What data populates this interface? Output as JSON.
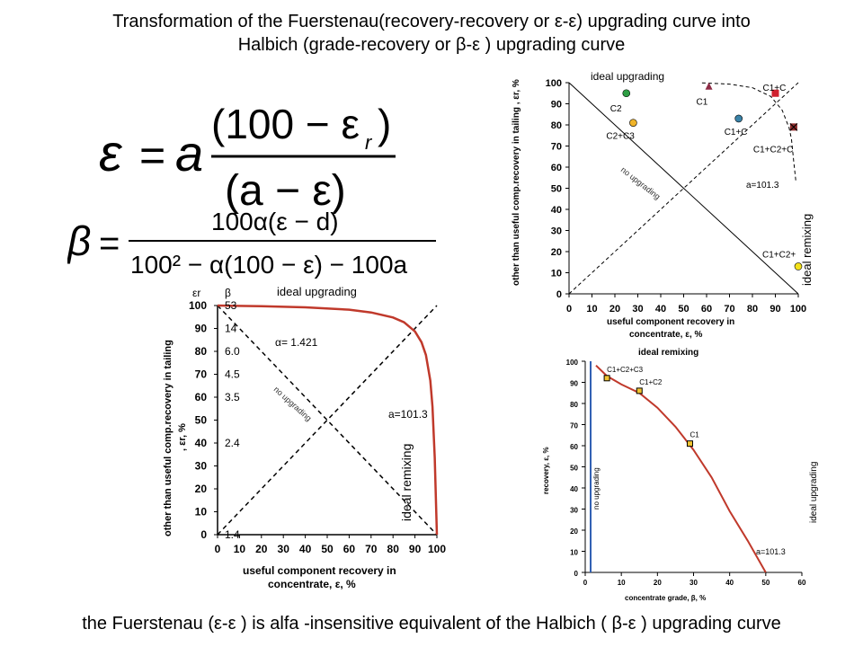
{
  "title": {
    "line1": "Transformation of the Fuerstenau(recovery-recovery or  ε-ε) upgrading curve into",
    "line2": "Halbich (grade-recovery or β-ε ) upgrading curve"
  },
  "footer": "the Fuerstenau (ε-ε ) is alfa -insensitive equivalent of  the Halbich ( β-ε ) upgrading curve",
  "formulas": {
    "eq1": {
      "lhs": "ε",
      "coef": "a",
      "numerator": "(100 − ε",
      "numerator_sub": "r",
      "numerator_close": ")",
      "denominator": "(a − ε)"
    },
    "eq2": {
      "lhs": "β",
      "numerator": "100α(ε − d)",
      "denominator": "100² − α(100 − ε) − 100a"
    }
  },
  "colors": {
    "curve": "#c0392b",
    "axis": "#000000",
    "dash": "#000000",
    "blue_line": "#2f5fb3"
  },
  "chart_data": [
    {
      "id": "fuerstenau-top-right",
      "type": "scatter",
      "xlabel": "useful  component  recovery  in concentrate,  ε, %",
      "ylabel": "other than  useful  comp.recovery  in tailing ,  εr, %",
      "xlim": [
        0,
        100
      ],
      "ylim": [
        0,
        100
      ],
      "xticks": [
        "0",
        "10",
        "20",
        "30",
        "40",
        "50",
        "60",
        "70",
        "80",
        "90",
        "100"
      ],
      "yticks": [
        "0",
        "10",
        "20",
        "30",
        "40",
        "50",
        "60",
        "70",
        "80",
        "90",
        "100"
      ],
      "label_top": "ideal upgrading",
      "label_right": "ideal remixing",
      "diag_label": "no upgrading",
      "curve_label": "a=101.3",
      "points": [
        {
          "label": "C2",
          "x": 25,
          "y": 95,
          "color": "#2e9e44",
          "shape": "circle"
        },
        {
          "label": "C2+C3",
          "x": 28,
          "y": 81,
          "color": "#f0b429",
          "shape": "circle"
        },
        {
          "label": "C1",
          "x": 61,
          "y": 98,
          "color": "#8e2c46",
          "shape": "triangle"
        },
        {
          "label": "C1+C",
          "x": 74,
          "y": 83,
          "color": "#3a83a8",
          "shape": "circle"
        },
        {
          "label": "C1+C",
          "x": 90,
          "y": 95,
          "color": "#d0202e",
          "shape": "square"
        },
        {
          "label": "C1+C2+C",
          "x": 98,
          "y": 79,
          "color": "#8e2c2c",
          "shape": "xsquare"
        },
        {
          "label": "C1+C2+",
          "x": 100,
          "y": 13,
          "color": "#f4e21a",
          "shape": "circle"
        }
      ],
      "curve": [
        [
          58,
          99.9
        ],
        [
          70,
          99.3
        ],
        [
          80,
          97.6
        ],
        [
          88,
          93.5
        ],
        [
          93,
          87.0
        ],
        [
          96,
          78.6
        ],
        [
          97,
          73.4
        ],
        [
          98,
          62.8
        ],
        [
          99,
          53
        ]
      ]
    },
    {
      "id": "fuerstenau-bottom-left",
      "type": "line",
      "xlabel": "useful component  recovery in concentrate, ε, %",
      "ylabel": "other than useful comp.recovery in tailing , εr, %",
      "xlim": [
        0,
        100
      ],
      "ylim": [
        0,
        100
      ],
      "xticks": [
        "0",
        "10",
        "20",
        "30",
        "40",
        "50",
        "60",
        "70",
        "80",
        "90",
        "100"
      ],
      "yticks": [
        "0",
        "10",
        "20",
        "30",
        "40",
        "50",
        "60",
        "70",
        "80",
        "90",
        "100"
      ],
      "axis_symbol_eps": "εr",
      "axis_symbol_beta": "β",
      "beta_ticks": [
        {
          "label": "53",
          "y": 100
        },
        {
          "label": "14",
          "y": 90
        },
        {
          "label": "6.0",
          "y": 80
        },
        {
          "label": "4.5",
          "y": 70
        },
        {
          "label": "3.5",
          "y": 60
        },
        {
          "label": "2.4",
          "y": 40
        },
        {
          "label": "1.4",
          "y": 0
        }
      ],
      "label_top": "ideal upgrading",
      "label_right": "ideal remixing",
      "diag_label": "no upgrading",
      "alpha_label": "α= 1.421",
      "curve_label": "a=101.3",
      "curve": [
        [
          0,
          100
        ],
        [
          20,
          99.7
        ],
        [
          40,
          99.2
        ],
        [
          60,
          98.2
        ],
        [
          70,
          97.0
        ],
        [
          80,
          94.8
        ],
        [
          85,
          92.7
        ],
        [
          90,
          88.7
        ],
        [
          93,
          84.0
        ],
        [
          95,
          78.4
        ],
        [
          97,
          67.2
        ],
        [
          98,
          55.8
        ],
        [
          99,
          33.7
        ],
        [
          100,
          0
        ]
      ]
    },
    {
      "id": "halbich-bottom-right",
      "type": "line",
      "xlabel": "concentrate grade, β, %",
      "ylabel": "recovery, ε, %",
      "xlim": [
        0,
        60
      ],
      "ylim": [
        0,
        100
      ],
      "xticks": [
        "0",
        "10",
        "20",
        "30",
        "40",
        "50",
        "60"
      ],
      "yticks": [
        "0",
        "10",
        "20",
        "30",
        "40",
        "50",
        "60",
        "70",
        "80",
        "90",
        "100"
      ],
      "label_top": "ideal remixing",
      "label_right": "ideal upgrading",
      "blue_label": "no upgrading",
      "curve_label": "a=101.3",
      "points": [
        {
          "label": "C1+C2+C3",
          "x": 6,
          "y": 92
        },
        {
          "label": "C1+C2",
          "x": 15,
          "y": 86
        },
        {
          "label": "C1",
          "x": 29,
          "y": 61
        }
      ],
      "curve": [
        [
          3,
          98
        ],
        [
          6,
          93
        ],
        [
          10,
          89
        ],
        [
          15,
          85
        ],
        [
          20,
          78
        ],
        [
          25,
          69
        ],
        [
          30,
          58
        ],
        [
          35,
          45
        ],
        [
          40,
          29
        ],
        [
          45,
          15
        ],
        [
          50,
          0
        ]
      ]
    }
  ]
}
